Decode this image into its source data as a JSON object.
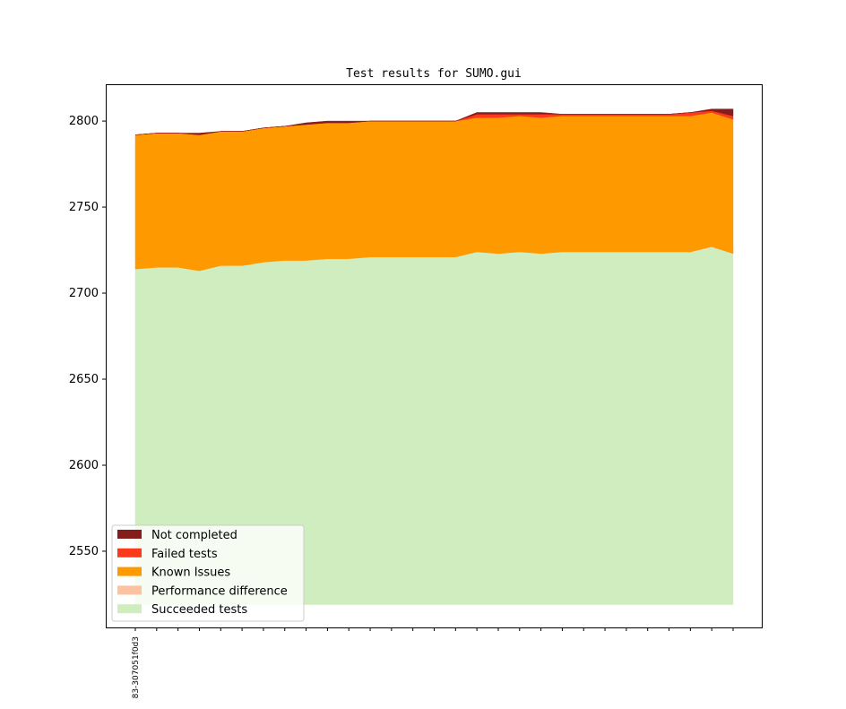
{
  "chart_data": {
    "type": "area",
    "title": "Test results for SUMO.gui",
    "xlabel": "",
    "ylabel": "",
    "x_tick_labels": [
      "83-307051f0d3"
    ],
    "x_count": 29,
    "ylim": [
      2505.7,
      2821.4
    ],
    "baseline": 2519,
    "yticks": [
      2550,
      2600,
      2650,
      2700,
      2750,
      2800
    ],
    "legend_position": "lower-left",
    "series": [
      {
        "name": "Succeeded tests",
        "color": "#cfedbe",
        "values": [
          2714,
          2715,
          2715,
          2713,
          2716,
          2716,
          2718,
          2719,
          2719,
          2720,
          2720,
          2721,
          2721,
          2721,
          2721,
          2721,
          2724,
          2723,
          2724,
          2723,
          2724,
          2724,
          2724,
          2724,
          2724,
          2724,
          2724,
          2727,
          2723
        ]
      },
      {
        "name": "Performance difference",
        "color": "#fcc3a0",
        "values": [
          0,
          0,
          0,
          0,
          0,
          0,
          0,
          0,
          0,
          0,
          0,
          0,
          0,
          0,
          0,
          0,
          0,
          0,
          0,
          0,
          0,
          0,
          0,
          0,
          0,
          0,
          0,
          0,
          0
        ]
      },
      {
        "name": "Known Issues",
        "color": "#ff9900",
        "values": [
          78,
          78,
          78,
          79,
          78,
          78,
          78,
          78,
          79,
          79,
          79,
          79,
          79,
          79,
          79,
          79,
          78,
          79,
          79,
          79,
          79,
          79,
          79,
          79,
          79,
          79,
          79,
          78,
          78
        ]
      },
      {
        "name": "Failed tests",
        "color": "#fb3a1c",
        "values": [
          0,
          0,
          0,
          0,
          0,
          0,
          0,
          0,
          0,
          0,
          0,
          0,
          0,
          0,
          0,
          0,
          2,
          2,
          1,
          2,
          1,
          1,
          1,
          1,
          1,
          1,
          2,
          1,
          2
        ]
      },
      {
        "name": "Not completed",
        "color": "#861d1d",
        "values": [
          0,
          0,
          0,
          1,
          0,
          0,
          0,
          0,
          1,
          1,
          1,
          0,
          0,
          0,
          0,
          0,
          1,
          1,
          1,
          1,
          0,
          0,
          0,
          0,
          0,
          0,
          0,
          1,
          4
        ]
      }
    ],
    "legend_order": [
      "Not completed",
      "Failed tests",
      "Known Issues",
      "Performance difference",
      "Succeeded tests"
    ]
  }
}
